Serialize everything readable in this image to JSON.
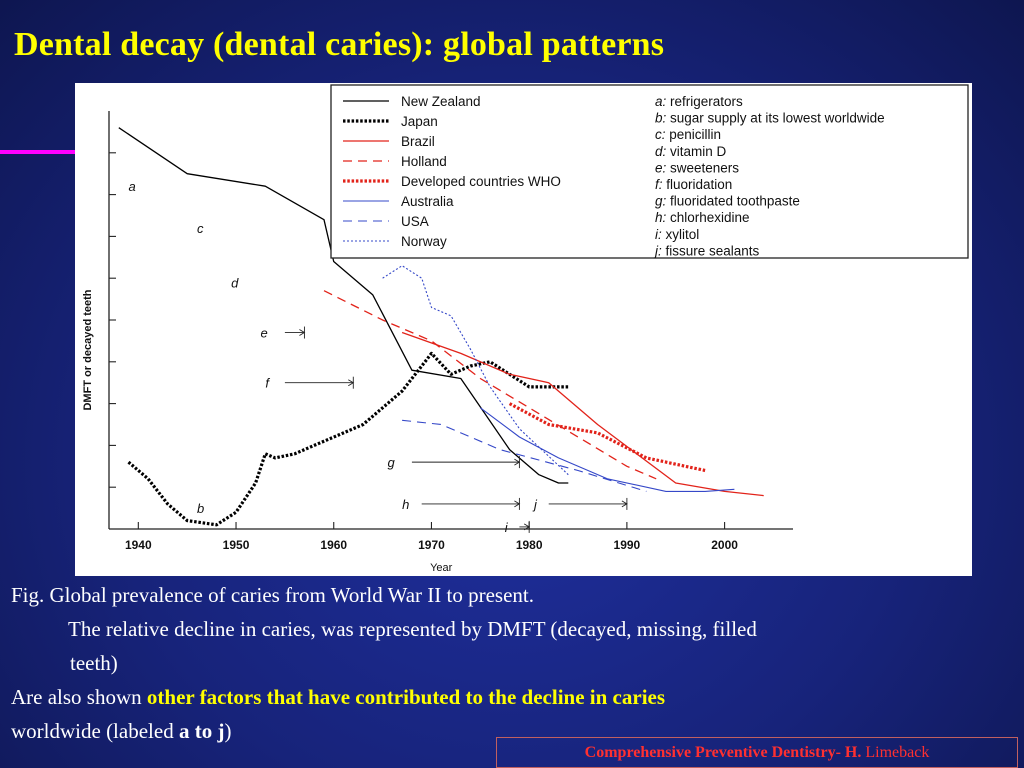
{
  "slide": {
    "title": "Dental decay (dental caries): global patterns",
    "caption": {
      "line1": "Fig. Global prevalence of caries from World War II to present.",
      "line2": "The relative decline in caries,  was represented by DMFT (decayed, missing, filled",
      "line3": "teeth)",
      "line4_prefix": "Are also shown ",
      "line4_highlight": "other factors that have contributed to the decline in caries",
      "line5_prefix": "worldwide (labeled ",
      "line5_bold": "a to j",
      "line5_suffix": ")"
    },
    "footer": {
      "bold": "Comprehensive Preventive Dentistry- H.",
      "normal": " Limeback"
    },
    "colors": {
      "title": "#ffff00",
      "accent_line": "#ff00ff",
      "caption_highlight": "#ffff00",
      "footer_text": "#ff3030"
    }
  },
  "chart_data": {
    "type": "line",
    "xlabel": "Year",
    "ylabel": "DMFT or decayed teeth",
    "xlim": [
      1937,
      2007
    ],
    "ylim": [
      0,
      10
    ],
    "x_ticks": [
      1940,
      1950,
      1960,
      1970,
      1980,
      1990,
      2000
    ],
    "grid": false,
    "legend_position": "top-right",
    "series": [
      {
        "name": "New Zealand",
        "color": "#000000",
        "dash": "solid",
        "width": 1.3,
        "points": [
          [
            1938,
            9.6
          ],
          [
            1945,
            8.5
          ],
          [
            1953,
            8.2
          ],
          [
            1959,
            7.4
          ],
          [
            1960,
            6.4
          ],
          [
            1964,
            5.6
          ],
          [
            1968,
            3.8
          ],
          [
            1973,
            3.6
          ],
          [
            1978,
            1.9
          ],
          [
            1981,
            1.3
          ],
          [
            1983,
            1.1
          ],
          [
            1984,
            1.1
          ]
        ]
      },
      {
        "name": "Japan",
        "color": "#000000",
        "dash": "dotted",
        "width": 3.2,
        "points": [
          [
            1939,
            1.6
          ],
          [
            1941,
            1.2
          ],
          [
            1943,
            0.6
          ],
          [
            1945,
            0.2
          ],
          [
            1948,
            0.1
          ],
          [
            1950,
            0.4
          ],
          [
            1952,
            1.1
          ],
          [
            1953,
            1.8
          ],
          [
            1954,
            1.7
          ],
          [
            1956,
            1.8
          ],
          [
            1958,
            2.0
          ],
          [
            1961,
            2.3
          ],
          [
            1963,
            2.5
          ],
          [
            1967,
            3.3
          ],
          [
            1969,
            3.9
          ],
          [
            1970,
            4.2
          ],
          [
            1972,
            3.7
          ],
          [
            1974,
            3.9
          ],
          [
            1976,
            4.0
          ],
          [
            1978,
            3.7
          ],
          [
            1980,
            3.4
          ],
          [
            1984,
            3.4
          ]
        ]
      },
      {
        "name": "Brazil",
        "color": "#e2231a",
        "dash": "solid",
        "width": 1.3,
        "points": [
          [
            1967,
            4.7
          ],
          [
            1973,
            4.2
          ],
          [
            1978,
            3.7
          ],
          [
            1982,
            3.5
          ],
          [
            1987,
            2.5
          ],
          [
            1995,
            1.1
          ],
          [
            2000,
            0.9
          ],
          [
            2004,
            0.8
          ]
        ]
      },
      {
        "name": "Holland",
        "color": "#e2231a",
        "dash": "dashed",
        "width": 1.3,
        "points": [
          [
            1959,
            5.7
          ],
          [
            1965,
            5.0
          ],
          [
            1970,
            4.5
          ],
          [
            1975,
            3.6
          ],
          [
            1980,
            2.9
          ],
          [
            1985,
            2.2
          ],
          [
            1990,
            1.5
          ],
          [
            1993,
            1.2
          ]
        ]
      },
      {
        "name": "Developed countries WHO",
        "color": "#e2231a",
        "dash": "dotted",
        "width": 3.2,
        "points": [
          [
            1978,
            3.0
          ],
          [
            1982,
            2.5
          ],
          [
            1987,
            2.3
          ],
          [
            1992,
            1.7
          ],
          [
            1998,
            1.4
          ]
        ]
      },
      {
        "name": "Australia",
        "color": "#3548c8",
        "dash": "solid",
        "width": 1.1,
        "points": [
          [
            1975,
            2.9
          ],
          [
            1979,
            2.2
          ],
          [
            1983,
            1.7
          ],
          [
            1988,
            1.2
          ],
          [
            1994,
            0.9
          ],
          [
            1998,
            0.9
          ],
          [
            2001,
            0.95
          ]
        ]
      },
      {
        "name": "USA",
        "color": "#3548c8",
        "dash": "dashed",
        "width": 1.1,
        "points": [
          [
            1967,
            2.6
          ],
          [
            1971,
            2.5
          ],
          [
            1977,
            1.9
          ],
          [
            1985,
            1.4
          ],
          [
            1992,
            0.9
          ]
        ]
      },
      {
        "name": "Norway",
        "color": "#3548c8",
        "dash": "dotted",
        "width": 1.1,
        "points": [
          [
            1965,
            6.0
          ],
          [
            1967,
            6.3
          ],
          [
            1969,
            6.0
          ],
          [
            1970,
            5.3
          ],
          [
            1972,
            5.1
          ],
          [
            1974,
            4.3
          ],
          [
            1976,
            3.4
          ],
          [
            1979,
            2.4
          ],
          [
            1984,
            1.3
          ]
        ]
      }
    ],
    "factors": [
      {
        "letter": "a",
        "text": "refrigerators"
      },
      {
        "letter": "b",
        "text": "sugar supply at its lowest worldwide"
      },
      {
        "letter": "c",
        "text": "penicillin"
      },
      {
        "letter": "d",
        "text": "vitamin D"
      },
      {
        "letter": "e",
        "text": "sweeteners"
      },
      {
        "letter": "f",
        "text": "fluoridation"
      },
      {
        "letter": "g",
        "text": "fluoridated toothpaste"
      },
      {
        "letter": "h",
        "text": "chlorhexidine"
      },
      {
        "letter": "i",
        "text": "xylitol"
      },
      {
        "letter": "j",
        "text": "fissure sealants"
      }
    ],
    "annotations": [
      {
        "letter": "a",
        "x": 1939.0,
        "y": 8.2
      },
      {
        "letter": "c",
        "x": 1946.0,
        "y": 7.2
      },
      {
        "letter": "d",
        "x": 1949.5,
        "y": 5.9
      },
      {
        "letter": "b",
        "x": 1946.0,
        "y": 0.5
      },
      {
        "letter": "e",
        "x": 1952.5,
        "y": 4.7,
        "from": 1955,
        "to": 1957
      },
      {
        "letter": "f",
        "x": 1953.0,
        "y": 3.5,
        "from": 1955,
        "to": 1962
      },
      {
        "letter": "g",
        "x": 1965.5,
        "y": 1.6,
        "from": 1968,
        "to": 1979
      },
      {
        "letter": "h",
        "x": 1967.0,
        "y": 0.6,
        "from": 1969,
        "to": 1979
      },
      {
        "letter": "j",
        "x": 1980.5,
        "y": 0.6,
        "from": 1982,
        "to": 1990
      },
      {
        "letter": "i",
        "x": 1977.5,
        "y": 0.05,
        "from": 1979,
        "to": 1980
      }
    ]
  }
}
